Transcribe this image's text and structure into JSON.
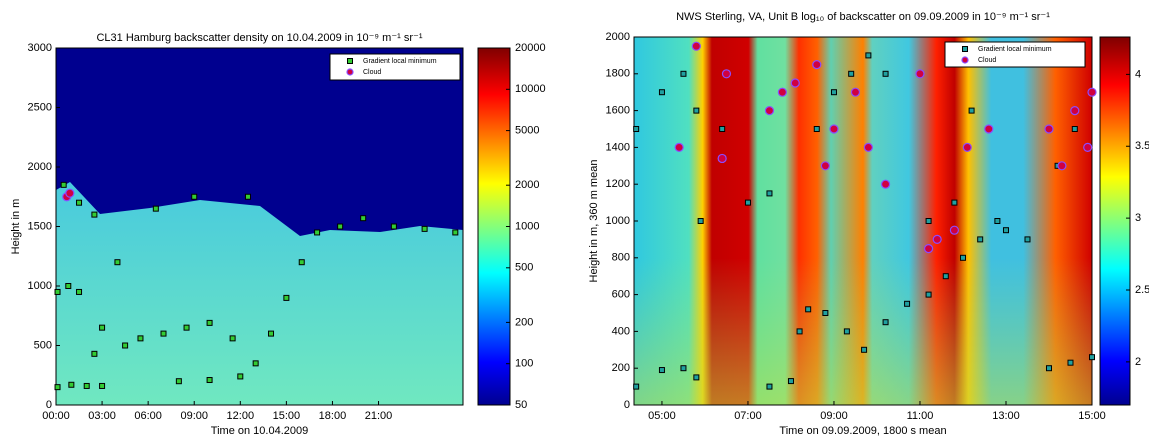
{
  "chart_data": [
    {
      "type": "scatter",
      "title": "CL31 Hamburg backscatter density on 10.04.2009 in 10⁻⁹ m⁻¹ sr⁻¹",
      "x_label": "Time on 10.04.2009",
      "y_label": "Height in m",
      "xlim": [
        0,
        26.5
      ],
      "xticks": [
        {
          "value": 0,
          "label": "00:00"
        },
        {
          "value": 3,
          "label": "03:00"
        },
        {
          "value": 6,
          "label": "06:00"
        },
        {
          "value": 9,
          "label": "09:00"
        },
        {
          "value": 12,
          "label": "12:00"
        },
        {
          "value": 15,
          "label": "15:00"
        },
        {
          "value": 18,
          "label": "18:00"
        },
        {
          "value": 21,
          "label": "21:00"
        }
      ],
      "ylim": [
        0,
        3000
      ],
      "yticks": [
        0,
        500,
        1000,
        1500,
        2000,
        2500,
        3000
      ],
      "colorbar": {
        "lim": [
          50,
          20000
        ],
        "log": true,
        "ticks": [
          50,
          100,
          200,
          500,
          1000,
          2000,
          5000,
          10000,
          20000
        ]
      },
      "series": [
        {
          "name": "Gradient local minimum",
          "marker": "square",
          "color": "#33cc33",
          "x": [
            0.1,
            1,
            2,
            3,
            0.1,
            0.8,
            1.5,
            0.5,
            1.5,
            2.5,
            4.5,
            5.5,
            7,
            8.5,
            10,
            11.5,
            3,
            2.5,
            8,
            10,
            12,
            13,
            14,
            15,
            16,
            17,
            18.5,
            20,
            22,
            24,
            26,
            6.5,
            9,
            12.5,
            4
          ],
          "values": [
            150,
            170,
            160,
            160,
            950,
            1000,
            950,
            1850,
            1700,
            1600,
            500,
            560,
            600,
            650,
            690,
            560,
            650,
            430,
            200,
            210,
            240,
            350,
            600,
            900,
            1200,
            1450,
            1500,
            1570,
            1500,
            1480,
            1450,
            1650,
            1750,
            1750,
            1200
          ]
        },
        {
          "name": "Cloud",
          "marker": "circle",
          "color": "#d00040",
          "x": [
            0.7,
            0.9
          ],
          "values": [
            1750,
            1780
          ]
        }
      ]
    },
    {
      "type": "scatter",
      "title": "NWS Sterling, VA, Unit B log₁₀ of backscatter on 09.09.2009 in 10⁻⁹ m⁻¹ sr⁻¹",
      "x_label": "Time on 09.09.2009, 1800 s mean",
      "y_label": "Height in m, 360 m mean",
      "xlim": [
        4.35,
        15
      ],
      "xticks": [
        {
          "value": 5,
          "label": "05:00"
        },
        {
          "value": 7,
          "label": "07:00"
        },
        {
          "value": 9,
          "label": "09:00"
        },
        {
          "value": 11,
          "label": "11:00"
        },
        {
          "value": 13,
          "label": "13:00"
        },
        {
          "value": 15,
          "label": "15:00"
        }
      ],
      "ylim": [
        0,
        2000
      ],
      "yticks": [
        0,
        200,
        400,
        600,
        800,
        1000,
        1200,
        1400,
        1600,
        1800,
        2000
      ],
      "colorbar": {
        "lim": [
          1.7,
          4.26
        ],
        "log": false,
        "ticks": [
          2,
          2.5,
          3,
          3.5,
          4
        ]
      },
      "series": [
        {
          "name": "Gradient local minimum",
          "marker": "square",
          "color": "#20a0a0",
          "x": [
            4.4,
            5,
            5.5,
            5.8,
            5.9,
            4.4,
            5,
            5.5,
            5.8,
            6.4,
            7,
            7.5,
            7.5,
            8,
            8.2,
            8.4,
            8.8,
            9.3,
            9.7,
            10.2,
            10.7,
            11.2,
            11.6,
            12,
            12.4,
            12.8,
            13,
            13.5,
            14,
            14.5,
            15,
            14.2,
            14.6,
            15,
            8.6,
            9,
            9.4,
            9.8,
            10.2,
            11.2,
            11.8,
            12.2
          ],
          "values": [
            100,
            190,
            200,
            150,
            1000,
            1500,
            1700,
            1800,
            1600,
            1500,
            1100,
            1150,
            100,
            130,
            400,
            520,
            500,
            400,
            300,
            450,
            550,
            600,
            700,
            800,
            900,
            1000,
            950,
            900,
            200,
            230,
            260,
            1300,
            1500,
            1700,
            1500,
            1700,
            1800,
            1900,
            1800,
            1000,
            1100,
            1600
          ]
        },
        {
          "name": "Cloud",
          "marker": "circle",
          "color": "#d00040",
          "x": [
            5.4,
            5.8,
            6.4,
            6.5,
            7.5,
            7.8,
            8.1,
            8.6,
            8.8,
            9.0,
            9.5,
            9.8,
            10.2,
            11,
            11.2,
            11.4,
            11.8,
            12.1,
            12.6,
            14.0,
            14.3,
            14.6,
            14.9,
            15
          ],
          "values": [
            1400,
            1950,
            1340,
            1800,
            1600,
            1700,
            1750,
            1850,
            1300,
            1500,
            1700,
            1400,
            1200,
            1800,
            850,
            900,
            950,
            1400,
            1500,
            1500,
            1300,
            1600,
            1400,
            1700
          ]
        }
      ]
    }
  ]
}
